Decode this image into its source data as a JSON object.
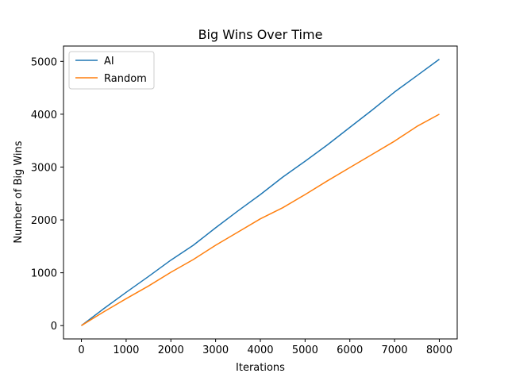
{
  "chart_data": {
    "type": "line",
    "title": "Big Wins Over Time",
    "xlabel": "Iterations",
    "ylabel": "Number of Big Wins",
    "xlim": [
      -400,
      8400
    ],
    "ylim": [
      -252,
      5290
    ],
    "xticks": [
      0,
      1000,
      2000,
      3000,
      4000,
      5000,
      6000,
      7000,
      8000
    ],
    "yticks": [
      0,
      1000,
      2000,
      3000,
      4000,
      5000
    ],
    "grid": false,
    "legend_position": "upper-left",
    "series": [
      {
        "name": "AI",
        "color": "#1f77b4",
        "x": [
          0,
          500,
          1000,
          1500,
          2000,
          2500,
          3000,
          3500,
          4000,
          4500,
          5000,
          5500,
          6000,
          6500,
          7000,
          7500,
          8000
        ],
        "y": [
          0,
          320,
          630,
          930,
          1240,
          1520,
          1850,
          2170,
          2480,
          2810,
          3110,
          3420,
          3750,
          4080,
          4420,
          4730,
          5040
        ]
      },
      {
        "name": "Random",
        "color": "#ff7f0e",
        "x": [
          0,
          500,
          1000,
          1500,
          2000,
          2500,
          3000,
          3500,
          4000,
          4500,
          5000,
          5500,
          6000,
          6500,
          7000,
          7500,
          8000
        ],
        "y": [
          0,
          260,
          510,
          750,
          1010,
          1250,
          1520,
          1770,
          2020,
          2230,
          2480,
          2740,
          2990,
          3240,
          3490,
          3770,
          4000
        ]
      }
    ]
  }
}
